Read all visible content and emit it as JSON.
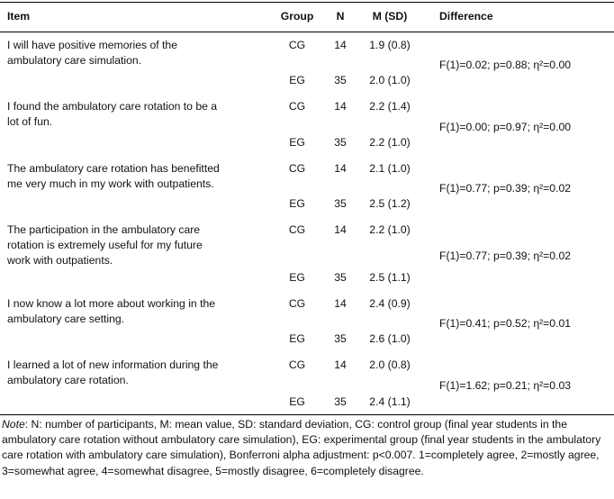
{
  "header": [
    "Item",
    "Group",
    "N",
    "M (SD)",
    "Difference"
  ],
  "rows": [
    {
      "item": "I will have positive memories of the ambulatory care simulation.",
      "groups": [
        {
          "group": "CG",
          "n": 14,
          "m_sd": "1.9 (0.8)"
        },
        {
          "group": "EG",
          "n": 35,
          "m_sd": "2.0 (1.0)"
        }
      ],
      "difference": "F(1)=0.02; p=0.88; η²=0.00"
    },
    {
      "item": "I found the ambulatory care rotation to be a lot of fun.",
      "groups": [
        {
          "group": "CG",
          "n": 14,
          "m_sd": "2.2 (1.4)"
        },
        {
          "group": "EG",
          "n": 35,
          "m_sd": "2.2 (1.0)"
        }
      ],
      "difference": "F(1)=0.00; p=0.97; η²=0.00"
    },
    {
      "item": "The ambulatory care rotation has benefitted me very much in my work with outpatients.",
      "groups": [
        {
          "group": "CG",
          "n": 14,
          "m_sd": "2.1 (1.0)"
        },
        {
          "group": "EG",
          "n": 35,
          "m_sd": "2.5 (1.2)"
        }
      ],
      "difference": "F(1)=0.77; p=0.39; η²=0.02"
    },
    {
      "item": "The participation in the ambulatory care rotation is extremely useful for my future work with outpatients.",
      "groups": [
        {
          "group": "CG",
          "n": 14,
          "m_sd": "2.2 (1.0)"
        },
        {
          "group": "EG",
          "n": 35,
          "m_sd": "2.5 (1.1)"
        }
      ],
      "difference": "F(1)=0.77; p=0.39; η²=0.02"
    },
    {
      "item": "I now know a lot more about working in the ambulatory care setting.",
      "groups": [
        {
          "group": "CG",
          "n": 14,
          "m_sd": "2.4 (0.9)"
        },
        {
          "group": "EG",
          "n": 35,
          "m_sd": "2.6 (1.0)"
        }
      ],
      "difference": "F(1)=0.41; p=0.52; η²=0.01"
    },
    {
      "item": "I learned a lot of new information during the ambulatory care rotation.",
      "groups": [
        {
          "group": "CG",
          "n": 14,
          "m_sd": "2.0 (0.8)"
        },
        {
          "group": "EG",
          "n": 35,
          "m_sd": "2.4 (1.1)"
        }
      ],
      "difference": "F(1)=1.62; p=0.21; η²=0.03"
    }
  ],
  "note": {
    "label": "Note",
    "text": ": N: number of participants, M: mean value, SD: standard deviation, CG: control group (final year students in the ambulatory care rotation without ambulatory care simulation), EG: experimental group (final year students in the ambulatory care rotation with ambulatory care simulation), Bonferroni alpha adjustment: p<0.007. 1=completely agree, 2=mostly agree, 3=somewhat agree, 4=somewhat disagree, 5=mostly disagree, 6=completely disagree."
  }
}
